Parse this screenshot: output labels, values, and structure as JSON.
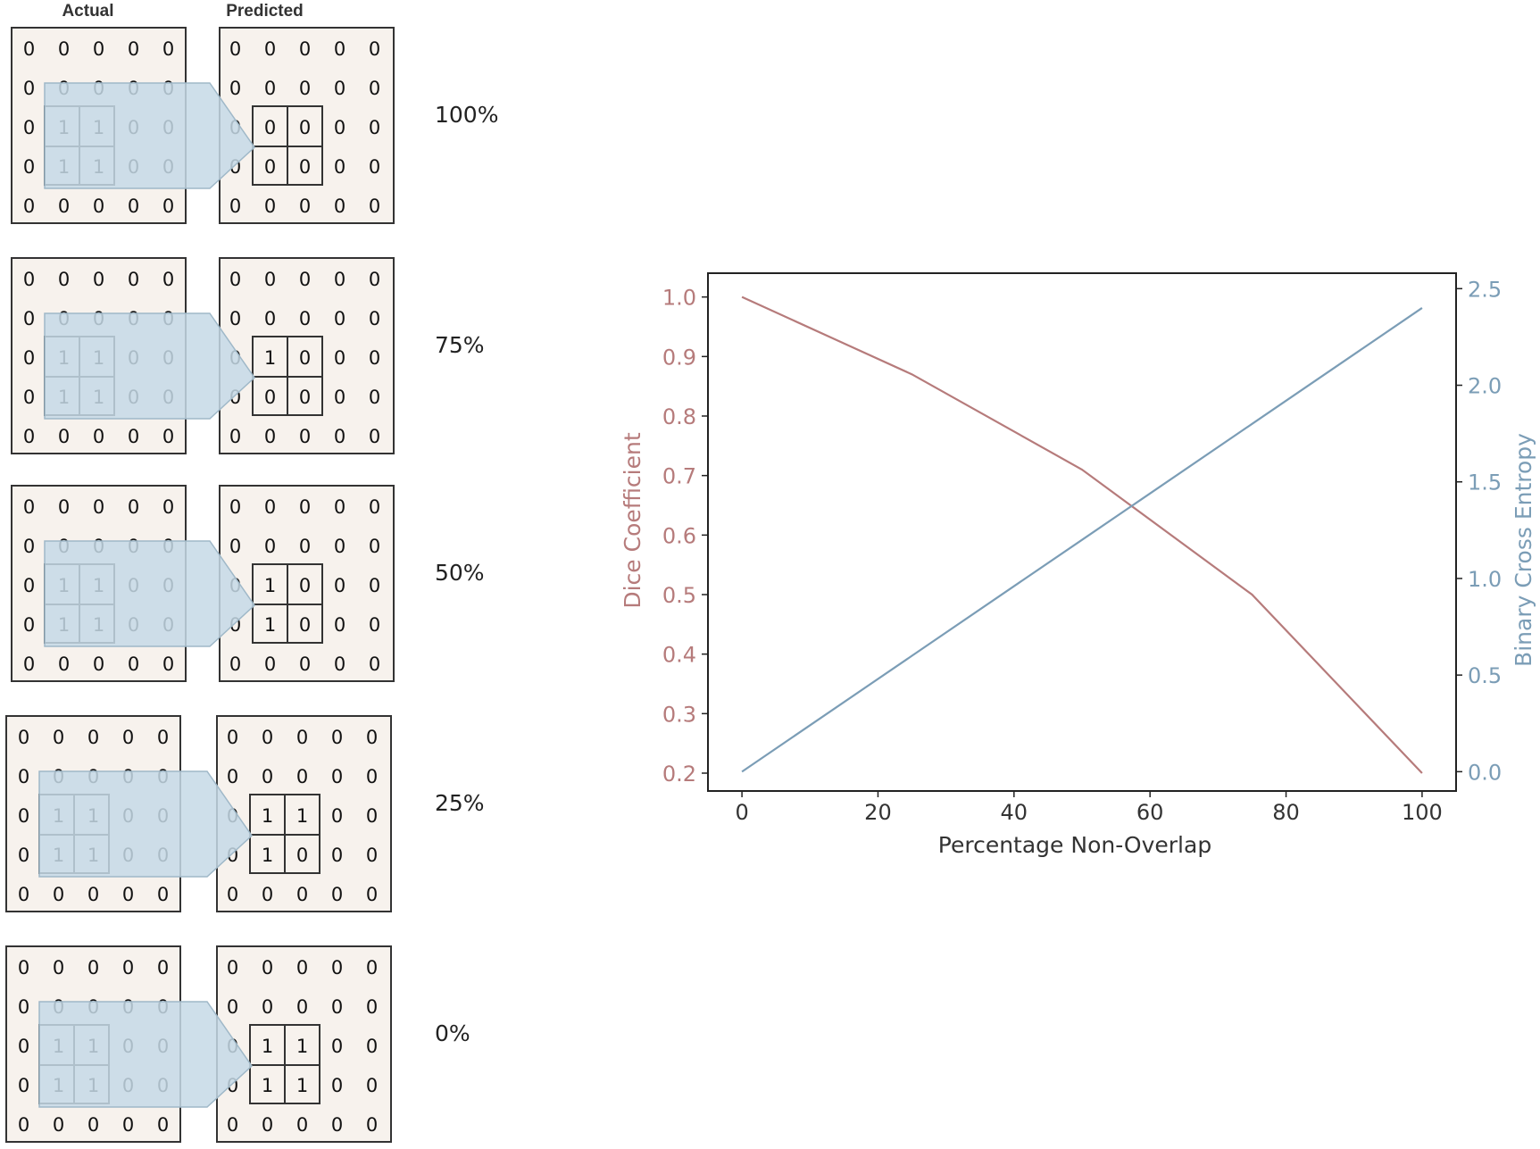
{
  "headers": {
    "actual": "Actual",
    "predicted": "Predicted"
  },
  "panels": [
    {
      "label": "100%",
      "actual": [
        [
          0,
          0,
          0,
          0,
          0
        ],
        [
          0,
          0,
          0,
          0,
          0
        ],
        [
          0,
          1,
          1,
          0,
          0
        ],
        [
          0,
          1,
          1,
          0,
          0
        ],
        [
          0,
          0,
          0,
          0,
          0
        ]
      ],
      "predicted": [
        [
          0,
          0,
          0,
          0,
          0
        ],
        [
          0,
          0,
          0,
          0,
          0
        ],
        [
          0,
          0,
          0,
          0,
          0
        ],
        [
          0,
          0,
          0,
          0,
          0
        ],
        [
          0,
          0,
          0,
          0,
          0
        ]
      ]
    },
    {
      "label": "75%",
      "actual": [
        [
          0,
          0,
          0,
          0,
          0
        ],
        [
          0,
          0,
          0,
          0,
          0
        ],
        [
          0,
          1,
          1,
          0,
          0
        ],
        [
          0,
          1,
          1,
          0,
          0
        ],
        [
          0,
          0,
          0,
          0,
          0
        ]
      ],
      "predicted": [
        [
          0,
          0,
          0,
          0,
          0
        ],
        [
          0,
          0,
          0,
          0,
          0
        ],
        [
          0,
          1,
          0,
          0,
          0
        ],
        [
          0,
          0,
          0,
          0,
          0
        ],
        [
          0,
          0,
          0,
          0,
          0
        ]
      ]
    },
    {
      "label": "50%",
      "actual": [
        [
          0,
          0,
          0,
          0,
          0
        ],
        [
          0,
          0,
          0,
          0,
          0
        ],
        [
          0,
          1,
          1,
          0,
          0
        ],
        [
          0,
          1,
          1,
          0,
          0
        ],
        [
          0,
          0,
          0,
          0,
          0
        ]
      ],
      "predicted": [
        [
          0,
          0,
          0,
          0,
          0
        ],
        [
          0,
          0,
          0,
          0,
          0
        ],
        [
          0,
          1,
          0,
          0,
          0
        ],
        [
          0,
          1,
          0,
          0,
          0
        ],
        [
          0,
          0,
          0,
          0,
          0
        ]
      ]
    },
    {
      "label": "25%",
      "actual": [
        [
          0,
          0,
          0,
          0,
          0
        ],
        [
          0,
          0,
          0,
          0,
          0
        ],
        [
          0,
          1,
          1,
          0,
          0
        ],
        [
          0,
          1,
          1,
          0,
          0
        ],
        [
          0,
          0,
          0,
          0,
          0
        ]
      ],
      "predicted": [
        [
          0,
          0,
          0,
          0,
          0
        ],
        [
          0,
          0,
          0,
          0,
          0
        ],
        [
          0,
          1,
          1,
          0,
          0
        ],
        [
          0,
          1,
          0,
          0,
          0
        ],
        [
          0,
          0,
          0,
          0,
          0
        ]
      ]
    },
    {
      "label": "0%",
      "actual": [
        [
          0,
          0,
          0,
          0,
          0
        ],
        [
          0,
          0,
          0,
          0,
          0
        ],
        [
          0,
          1,
          1,
          0,
          0
        ],
        [
          0,
          1,
          1,
          0,
          0
        ],
        [
          0,
          0,
          0,
          0,
          0
        ]
      ],
      "predicted": [
        [
          0,
          0,
          0,
          0,
          0
        ],
        [
          0,
          0,
          0,
          0,
          0
        ],
        [
          0,
          1,
          1,
          0,
          0
        ],
        [
          0,
          1,
          1,
          0,
          0
        ],
        [
          0,
          0,
          0,
          0,
          0
        ]
      ]
    }
  ],
  "colors": {
    "dice": "#b67b7b",
    "bce": "#7b9db6",
    "highlight": "#c6d9e6",
    "grid_bg": "#f7f2ed"
  },
  "chart_data": {
    "type": "line",
    "xlabel": "Percentage Non-Overlap",
    "ylabel": "Dice Coefficient",
    "y2label": "Binary Cross Entropy",
    "x": [
      0,
      25,
      50,
      75,
      100
    ],
    "xticks": [
      0,
      20,
      40,
      60,
      80,
      100
    ],
    "xlim": [
      -5,
      105
    ],
    "ylim": [
      0.17,
      1.04
    ],
    "y2lim": [
      -0.1,
      2.58
    ],
    "yticks": [
      "0.2",
      "0.3",
      "0.4",
      "0.5",
      "0.6",
      "0.7",
      "0.8",
      "0.9",
      "1.0"
    ],
    "y2ticks": [
      "0.0",
      "0.5",
      "1.0",
      "1.5",
      "2.0",
      "2.5"
    ],
    "series": [
      {
        "name": "Dice Coefficient",
        "axis": "left",
        "values": [
          1.0,
          0.87,
          0.71,
          0.5,
          0.2
        ]
      },
      {
        "name": "Binary Cross Entropy",
        "axis": "right",
        "values": [
          0.0,
          0.6,
          1.2,
          1.8,
          2.4
        ]
      }
    ]
  }
}
